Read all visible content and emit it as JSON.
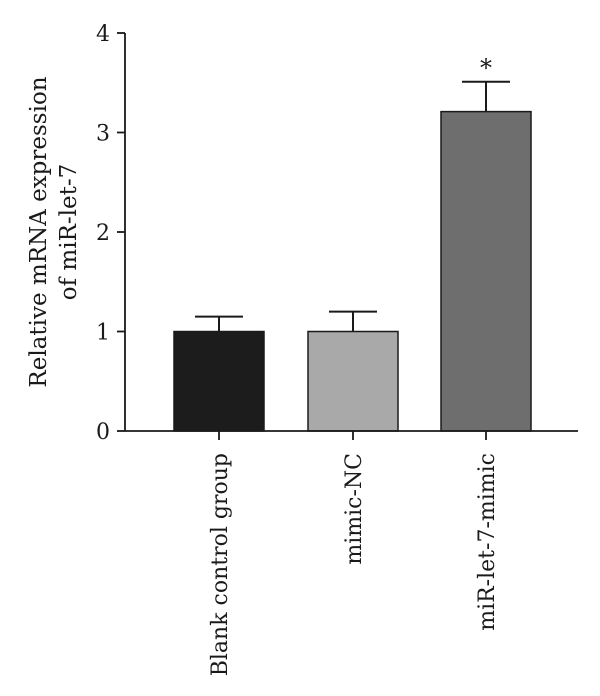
{
  "chart_data": {
    "type": "bar",
    "categories": [
      "Blank control group",
      "mimic-NC",
      "miR-let-7-mimic"
    ],
    "values": [
      1.0,
      1.0,
      3.21
    ],
    "errors": [
      0.15,
      0.2,
      0.3
    ],
    "significance": [
      "",
      "",
      "*"
    ],
    "ylabel_lines": [
      "Relative mRNA expression",
      "of miR-let-7"
    ],
    "xlabel": "",
    "ylim": [
      0,
      4
    ],
    "yticks": [
      0,
      1,
      2,
      3,
      4
    ],
    "grid": false,
    "bar_colors": [
      "#1c1c1c",
      "#a9a9a9",
      "#6e6e6e"
    ]
  }
}
